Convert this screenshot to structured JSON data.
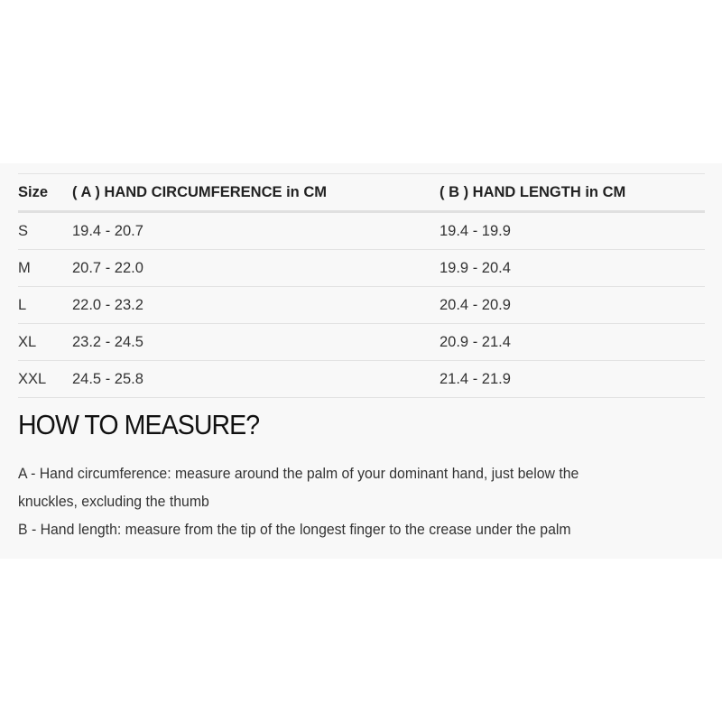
{
  "table": {
    "headers": [
      "Size",
      "( A ) HAND CIRCUMFERENCE in CM",
      "( B ) HAND LENGTH in CM"
    ],
    "rows": [
      [
        "S",
        "19.4 - 20.7",
        "19.4 - 19.9"
      ],
      [
        "M",
        "20.7 - 22.0",
        "19.9 - 20.4"
      ],
      [
        "L",
        "22.0 - 23.2",
        "20.4 - 20.9"
      ],
      [
        "XL",
        "23.2 - 24.5",
        "20.9 - 21.4"
      ],
      [
        "XXL",
        "24.5 - 25.8",
        "21.4 - 21.9"
      ]
    ]
  },
  "measure": {
    "title": "HOW TO MEASURE?",
    "line_a1": "A - Hand circumference: measure around the palm of your dominant hand, just below the",
    "line_a2": "knuckles, excluding the thumb",
    "line_b": "B - Hand length: measure from the tip of the longest finger to the crease under the palm"
  }
}
